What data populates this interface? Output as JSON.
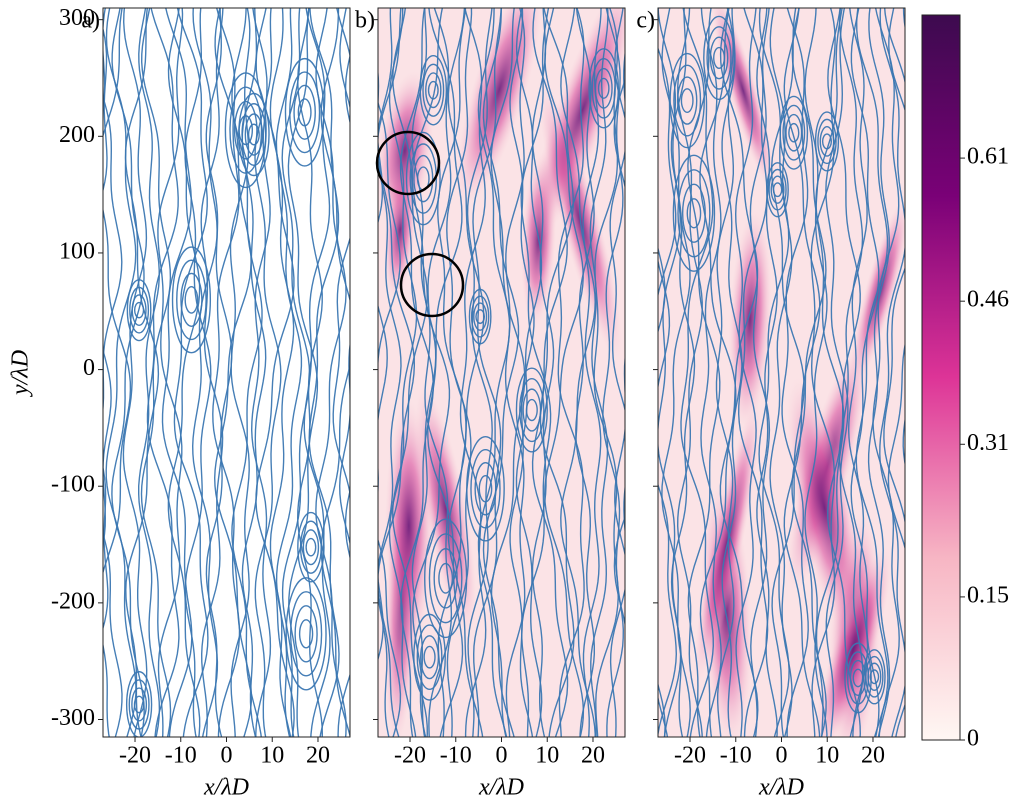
{
  "chart_data": [
    {
      "type": "streamplot",
      "panel": "a)",
      "xlabel": "x/λD",
      "ylabel": "y/λD",
      "xlim": [
        -27,
        27
      ],
      "xticks": [
        -20,
        -10,
        0,
        10,
        20
      ],
      "ylim": [
        -315,
        310
      ],
      "yticks": [
        -300,
        -200,
        -100,
        0,
        100,
        200,
        300
      ]
    },
    {
      "type": "streamplot",
      "panel": "b)",
      "xlabel": "x/λD",
      "xlim": [
        -27,
        27
      ],
      "xticks": [
        -20,
        -10,
        0,
        10,
        20
      ],
      "ylim": [
        -315,
        310
      ],
      "highlight": true
    },
    {
      "type": "streamplot",
      "panel": "c)",
      "xlabel": "x/λD",
      "xlim": [
        -27,
        27
      ],
      "xticks": [
        -20,
        -10,
        0,
        10,
        20
      ],
      "ylim": [
        -315,
        310
      ],
      "highlight": true
    },
    {
      "type": "colorbar",
      "ylim": [
        0,
        0.76
      ],
      "yticks": [
        0,
        0.15,
        0.31,
        0.46,
        0.61
      ],
      "colors": [
        "#fff7f3",
        "#f7b6c4",
        "#dd3497",
        "#7a0177",
        "#3d0a4f"
      ]
    }
  ]
}
